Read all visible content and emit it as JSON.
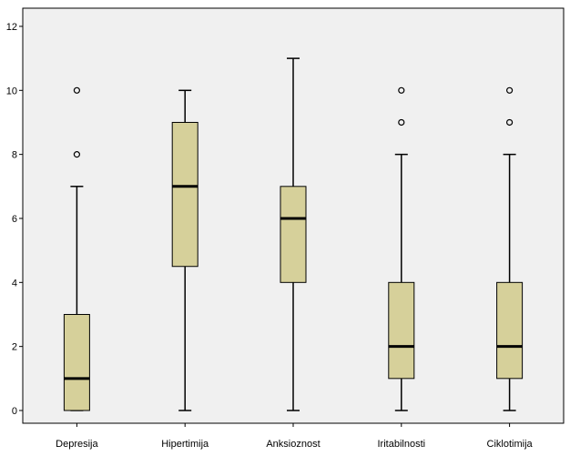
{
  "chart_data": {
    "type": "boxplot",
    "title": "",
    "xlabel": "",
    "ylabel": "",
    "ylim": [
      -0.3,
      12.3
    ],
    "yticks": [
      0,
      2,
      4,
      6,
      8,
      10,
      12
    ],
    "ytick_labels": [
      "0",
      "2",
      "4",
      "6",
      "8",
      "10",
      "12"
    ],
    "grid": false,
    "legend": "none",
    "colors": {
      "plot_background": "#f0f0f0",
      "box_fill": "#d6d09a",
      "box_stroke": "#000000"
    },
    "categories": [
      "Depresija",
      "Hipertimija",
      "Anksioznost",
      "Iritabilnosti",
      "Ciklotimija"
    ],
    "boxes": [
      {
        "whisker_low": 0,
        "q1": 0,
        "median": 1,
        "q3": 3,
        "whisker_high": 7,
        "outliers": [
          8,
          10
        ]
      },
      {
        "whisker_low": 0,
        "q1": 4.5,
        "median": 7,
        "q3": 9,
        "whisker_high": 10,
        "outliers": []
      },
      {
        "whisker_low": 0,
        "q1": 4,
        "median": 6,
        "q3": 7,
        "whisker_high": 11,
        "outliers": []
      },
      {
        "whisker_low": 0,
        "q1": 1,
        "median": 2,
        "q3": 4,
        "whisker_high": 8,
        "outliers": [
          9,
          10
        ]
      },
      {
        "whisker_low": 0,
        "q1": 1,
        "median": 2,
        "q3": 4,
        "whisker_high": 8,
        "outliers": [
          9,
          10
        ]
      }
    ]
  }
}
